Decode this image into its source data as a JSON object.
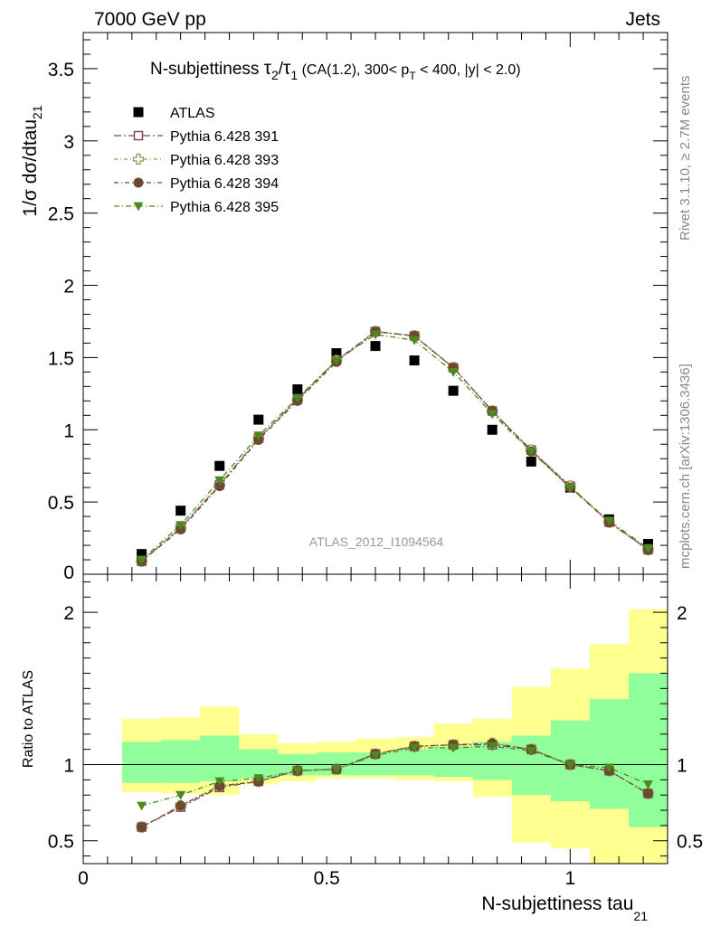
{
  "header": {
    "left": "7000 GeV pp",
    "right": "Jets"
  },
  "side_labels": {
    "rivet": "Rivet 3.1.10, ≥ 2.7M events",
    "mcplots": "mcplots.cern.ch [arXiv:1306.3436]"
  },
  "chart_data": {
    "type": "scatter",
    "title": "N-subjettiness τ2/τ1 (CA(1.2), 300< pT < 400, |y| < 2.0)",
    "title_parts": {
      "main": "N-subjettiness ",
      "tau": "τ",
      "sub2": "2",
      "slash": "/",
      "sub1": "1",
      "rest_a": " (CA(1.2), 300< p",
      "subT": "T",
      "rest_b": " < 400, |y| < 2.0)"
    },
    "watermark": "ATLAS_2012_I1094564",
    "xlabel": "N-subjettiness tau",
    "xlabel_sub": "21",
    "ylabel": "1/σ dσ/dtau",
    "ylabel_sub": "21",
    "ratio_ylabel": "Ratio to ATLAS",
    "xlim": [
      0,
      1.2
    ],
    "ylim_main": [
      0,
      3.75
    ],
    "ylim_ratio": [
      0.35,
      2.25
    ],
    "x_ticks": [
      "0",
      "0.5",
      "1"
    ],
    "y_ticks_main": [
      "0",
      "0.5",
      "1",
      "1.5",
      "2",
      "2.5",
      "3",
      "3.5"
    ],
    "y_ticks_ratio": [
      "0.5",
      "1",
      "2"
    ],
    "bin_edges": [
      0.08,
      0.16,
      0.24,
      0.32,
      0.4,
      0.48,
      0.56,
      0.64,
      0.72,
      0.8,
      0.88,
      0.96,
      1.04,
      1.12,
      1.2
    ],
    "x": [
      0.12,
      0.2,
      0.28,
      0.36,
      0.44,
      0.52,
      0.6,
      0.68,
      0.76,
      0.84,
      0.92,
      1.0,
      1.08,
      1.16
    ],
    "series": [
      {
        "name": "ATLAS",
        "marker": "filled-square",
        "color": "#000000",
        "values": [
          0.14,
          0.44,
          0.75,
          1.07,
          1.28,
          1.53,
          1.58,
          1.48,
          1.27,
          1.0,
          0.78,
          0.6,
          0.38,
          0.21
        ]
      },
      {
        "name": "Pythia 6.428 391",
        "marker": "open-square",
        "color": "#7a4a63",
        "values": [
          0.09,
          0.32,
          0.62,
          0.94,
          1.21,
          1.48,
          1.68,
          1.65,
          1.43,
          1.13,
          0.86,
          0.61,
          0.36,
          0.17
        ],
        "ratio": [
          0.59,
          0.72,
          0.85,
          0.89,
          0.96,
          0.97,
          1.07,
          1.12,
          1.13,
          1.13,
          1.1,
          1.0,
          0.96,
          0.81
        ]
      },
      {
        "name": "Pythia 6.428 393",
        "marker": "open-cross",
        "color": "#a39055",
        "values": [
          0.09,
          0.32,
          0.62,
          0.94,
          1.21,
          1.48,
          1.68,
          1.65,
          1.43,
          1.13,
          0.86,
          0.61,
          0.36,
          0.17
        ],
        "ratio": [
          0.59,
          0.73,
          0.86,
          0.89,
          0.96,
          0.97,
          1.07,
          1.12,
          1.13,
          1.14,
          1.1,
          1.0,
          0.96,
          0.81
        ]
      },
      {
        "name": "Pythia 6.428 394",
        "marker": "filled-circle",
        "color": "#6b4a2e",
        "values": [
          0.09,
          0.31,
          0.61,
          0.93,
          1.2,
          1.47,
          1.68,
          1.65,
          1.43,
          1.13,
          0.85,
          0.6,
          0.36,
          0.17
        ],
        "ratio": [
          0.59,
          0.73,
          0.86,
          0.89,
          0.96,
          0.97,
          1.07,
          1.12,
          1.13,
          1.14,
          1.1,
          1.0,
          0.96,
          0.81
        ]
      },
      {
        "name": "Pythia 6.428 395",
        "marker": "filled-triangle-down",
        "color": "#4b8b1e",
        "values": [
          0.1,
          0.34,
          0.65,
          0.96,
          1.22,
          1.48,
          1.66,
          1.62,
          1.4,
          1.11,
          0.85,
          0.6,
          0.37,
          0.18
        ],
        "ratio": [
          0.73,
          0.8,
          0.89,
          0.91,
          0.96,
          0.97,
          1.06,
          1.11,
          1.11,
          1.12,
          1.09,
          1.0,
          0.98,
          0.87
        ]
      }
    ],
    "uncertainty_bands": {
      "inner_color": "#90ff9b",
      "outer_color": "#ffff90",
      "inner": [
        [
          0.88,
          1.15
        ],
        [
          0.88,
          1.16
        ],
        [
          0.89,
          1.19
        ],
        [
          0.91,
          1.1
        ],
        [
          0.93,
          1.07
        ],
        [
          0.93,
          1.08
        ],
        [
          0.93,
          1.08
        ],
        [
          0.93,
          1.1
        ],
        [
          0.92,
          1.12
        ],
        [
          0.9,
          1.15
        ],
        [
          0.8,
          1.19
        ],
        [
          0.76,
          1.29
        ],
        [
          0.71,
          1.43
        ],
        [
          0.59,
          1.6
        ]
      ],
      "outer": [
        [
          0.82,
          1.3
        ],
        [
          0.81,
          1.31
        ],
        [
          0.8,
          1.38
        ],
        [
          0.87,
          1.2
        ],
        [
          0.89,
          1.14
        ],
        [
          0.91,
          1.15
        ],
        [
          0.91,
          1.17
        ],
        [
          0.9,
          1.18
        ],
        [
          0.89,
          1.27
        ],
        [
          0.79,
          1.3
        ],
        [
          0.49,
          1.51
        ],
        [
          0.45,
          1.63
        ],
        [
          0.35,
          1.79
        ],
        [
          0.35,
          2.02
        ]
      ]
    },
    "reference_line": 1.0,
    "grid": false,
    "legend_position": "top-left"
  }
}
